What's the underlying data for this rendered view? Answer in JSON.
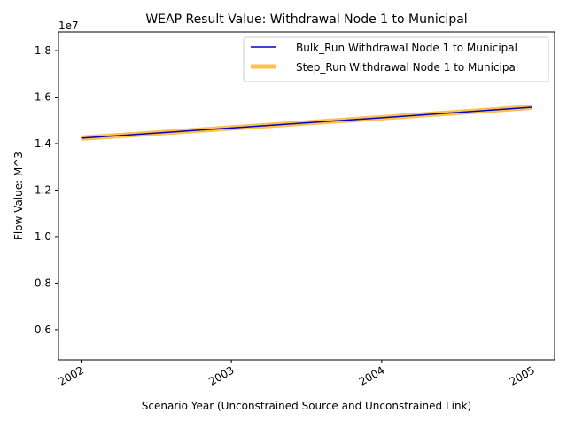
{
  "chart_data": {
    "type": "line",
    "title": "WEAP Result Value: Withdrawal Node 1 to Municipal",
    "xlabel": "Scenario Year (Unconstrained Source and Unconstrained Link)",
    "ylabel": "Flow Value: M^3",
    "y_scale_label": "1e7",
    "x": [
      2002,
      2003,
      2004,
      2005
    ],
    "x_tick_labels": [
      "2002",
      "2003",
      "2004",
      "2005"
    ],
    "xlim": [
      2001.85,
      2005.15
    ],
    "ylim": [
      4700000,
      18800000
    ],
    "y_ticks": [
      6000000,
      8000000,
      10000000,
      12000000,
      14000000,
      16000000,
      18000000
    ],
    "y_tick_labels": [
      "0.6",
      "0.8",
      "1.0",
      "1.2",
      "1.4",
      "1.6",
      "1.8"
    ],
    "grid": false,
    "legend_position": "upper right",
    "series": [
      {
        "name": "Bulk_Run Withdrawal Node 1 to Municipal",
        "values": [
          14230000,
          14670000,
          15110000,
          15560000
        ],
        "color": "#0000cc",
        "style": "thin"
      },
      {
        "name": "Step_Run Withdrawal Node 1 to Municipal",
        "values": [
          14230000,
          14670000,
          15110000,
          15560000
        ],
        "color": "#ffa500",
        "opacity": 0.7,
        "style": "thick"
      }
    ]
  }
}
